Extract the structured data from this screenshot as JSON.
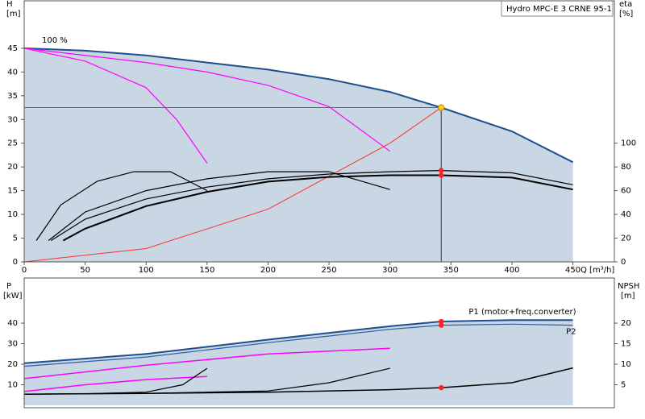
{
  "chart_data": [
    {
      "type": "line",
      "title": "Hydro MPC-E 3 CRNE 95-1",
      "y_label": "H",
      "y_unit": "[m]",
      "y2_label": "eta",
      "y2_unit": "[%]",
      "x_label": "Q [m³/h]",
      "annotation": "100 %",
      "xlim": [
        0,
        484
      ],
      "xticks": [
        0,
        50,
        100,
        150,
        200,
        250,
        300,
        350,
        400,
        450
      ],
      "ylim": [
        0,
        55
      ],
      "yticks": [
        0,
        5,
        10,
        15,
        20,
        25,
        30,
        35,
        40,
        45
      ],
      "y2lim": [
        0,
        220
      ],
      "y2ticks": [
        0,
        20,
        40,
        60,
        80,
        100
      ],
      "operating_point": {
        "x": 342,
        "y": 32.5
      },
      "highlight_x": 342,
      "series": [
        {
          "color": "#1f4e8c",
          "fill": "#c9d6e3",
          "width": 2,
          "x": [
            0,
            50,
            100,
            150,
            200,
            250,
            300,
            342,
            400,
            450
          ],
          "values": [
            45,
            44.5,
            43.5,
            42,
            40.5,
            38.5,
            35.8,
            32.5,
            27.5,
            21
          ]
        },
        {
          "color": "#ff00ff",
          "width": 1.2,
          "x": [
            0,
            50,
            100,
            125,
            150
          ],
          "values": [
            45,
            42.3,
            36.7,
            30,
            20.8
          ]
        },
        {
          "color": "#ff00ff",
          "width": 1.2,
          "x": [
            0,
            100,
            150,
            200,
            250,
            300
          ],
          "values": [
            45,
            42,
            40,
            37.2,
            32.7,
            23.3
          ]
        },
        {
          "color": "#ff3030",
          "width": 1,
          "x": [
            0,
            100,
            200,
            300,
            342
          ],
          "values": [
            0,
            2.8,
            11.1,
            25,
            32.5
          ]
        },
        {
          "color": "#000000",
          "width": 2,
          "axis": "y2",
          "x": [
            32,
            50,
            100,
            150,
            200,
            250,
            300,
            342,
            400,
            450
          ],
          "values": [
            18,
            28,
            47,
            59,
            67.6,
            71.6,
            73,
            73,
            71,
            61
          ]
        },
        {
          "color": "#000000",
          "width": 1.2,
          "axis": "y2",
          "x": [
            22,
            50,
            100,
            150,
            200,
            250,
            300,
            342,
            400,
            450
          ],
          "values": [
            18,
            36,
            53,
            63,
            70,
            74,
            76,
            77,
            75,
            65
          ]
        },
        {
          "color": "#000000",
          "width": 1.2,
          "axis": "y2",
          "x": [
            10,
            30,
            60,
            90,
            120,
            150
          ],
          "values": [
            18,
            48,
            68,
            76,
            76,
            60
          ]
        },
        {
          "color": "#000000",
          "width": 1.2,
          "axis": "y2",
          "x": [
            20,
            50,
            100,
            150,
            200,
            250,
            300
          ],
          "values": [
            18,
            42,
            60,
            70,
            76,
            76,
            61
          ]
        }
      ]
    },
    {
      "type": "line",
      "y_label": "P",
      "y_unit": "[kW]",
      "y2_label": "NPSH",
      "y2_unit": "[m]",
      "xlim": [
        0,
        484
      ],
      "ylim": [
        0,
        62
      ],
      "yticks": [
        10,
        20,
        30,
        40
      ],
      "y2lim": [
        0,
        31
      ],
      "y2ticks": [
        5,
        10,
        15,
        20
      ],
      "highlight_x": 342,
      "series": [
        {
          "name": "P1 (motor+freq.converter)",
          "color": "#1f4e8c",
          "fill": "#c9d6e3",
          "width": 2,
          "x": [
            0,
            100,
            200,
            300,
            342,
            400,
            450
          ],
          "values": [
            20.5,
            25,
            32,
            38.5,
            40.8,
            41.5,
            41.5
          ]
        },
        {
          "name": "P2",
          "color": "#2b5fa6",
          "width": 1.2,
          "x": [
            0,
            100,
            200,
            300,
            342,
            400,
            450
          ],
          "values": [
            19,
            23.5,
            30.5,
            37,
            39,
            39.5,
            39
          ]
        },
        {
          "color": "#ff00ff",
          "width": 1.5,
          "x": [
            0,
            100,
            200,
            300
          ],
          "values": [
            13,
            19.5,
            25,
            27.8
          ]
        },
        {
          "color": "#ff00ff",
          "width": 1.5,
          "x": [
            0,
            50,
            100,
            150
          ],
          "values": [
            6.7,
            10,
            12.5,
            14
          ]
        },
        {
          "color": "#000000",
          "width": 1.5,
          "axis": "y2",
          "x": [
            0,
            100,
            200,
            300,
            342,
            400,
            450
          ],
          "values": [
            2.7,
            2.9,
            3.2,
            3.8,
            4.3,
            5.5,
            9.1
          ]
        },
        {
          "color": "#000000",
          "width": 1.2,
          "axis": "y2",
          "x": [
            0,
            50,
            100,
            130,
            150
          ],
          "values": [
            2.7,
            2.8,
            3.2,
            5,
            9
          ]
        },
        {
          "color": "#000000",
          "width": 1.2,
          "axis": "y2",
          "x": [
            0,
            100,
            200,
            250,
            300
          ],
          "values": [
            2.7,
            2.9,
            3.5,
            5.5,
            9
          ]
        }
      ]
    }
  ]
}
